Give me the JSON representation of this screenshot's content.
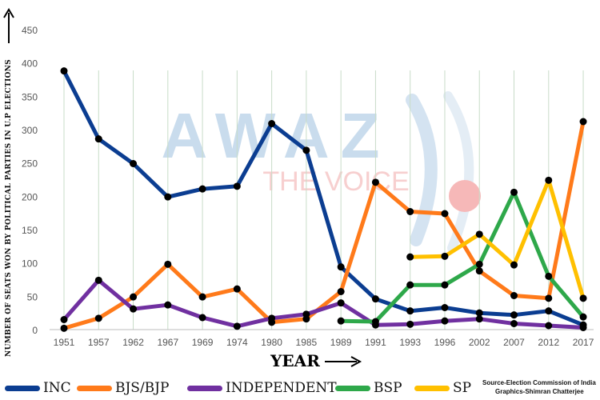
{
  "watermark": {
    "main": "AWAZ",
    "sub": "THE VOICE"
  },
  "colors": {
    "INC": "#0b3d91",
    "BJS/BJP": "#ff7a1a",
    "INDEPENDENT": "#7030a0",
    "BSP": "#2ea84a",
    "SP": "#ffc000",
    "grid": "#c8dcc8",
    "marker": "#000000"
  },
  "chart_data": {
    "type": "line",
    "title": "",
    "xlabel": "YEAR",
    "ylabel": "NUMBER OF SEATS WON BY POLITICAL PARTIES IN U.P ELECTIONS",
    "ylim": [
      0,
      450
    ],
    "yticks": [
      0,
      50,
      100,
      150,
      200,
      250,
      300,
      350,
      400,
      450
    ],
    "grid": "vertical lines at each year",
    "legend": "bottom",
    "categories": [
      "1951",
      "1957",
      "1962",
      "1967",
      "1969",
      "1974",
      "1980",
      "1985",
      "1989",
      "1991",
      "1993",
      "1996",
      "2002",
      "2007",
      "2012",
      "2017"
    ],
    "series": [
      {
        "name": "INC",
        "values": [
          388,
          286,
          249,
          199,
          211,
          215,
          309,
          269,
          94,
          46,
          28,
          33,
          25,
          22,
          28,
          7
        ]
      },
      {
        "name": "BJS/BJP",
        "values": [
          2,
          17,
          49,
          98,
          49,
          61,
          11,
          16,
          57,
          221,
          177,
          174,
          88,
          51,
          47,
          312
        ]
      },
      {
        "name": "INDEPENDENT",
        "values": [
          15,
          74,
          31,
          37,
          18,
          5,
          17,
          23,
          40,
          7,
          8,
          13,
          16,
          9,
          6,
          3
        ]
      },
      {
        "name": "BSP",
        "values": [
          null,
          null,
          null,
          null,
          null,
          null,
          null,
          null,
          13,
          12,
          67,
          67,
          98,
          206,
          80,
          19
        ]
      },
      {
        "name": "SP",
        "values": [
          null,
          null,
          null,
          null,
          null,
          null,
          null,
          null,
          null,
          null,
          109,
          110,
          143,
          97,
          224,
          47
        ]
      }
    ]
  },
  "source": {
    "line1": "Source-Election Commission of India",
    "line2": "Graphics-Shimran Chatterjee"
  }
}
